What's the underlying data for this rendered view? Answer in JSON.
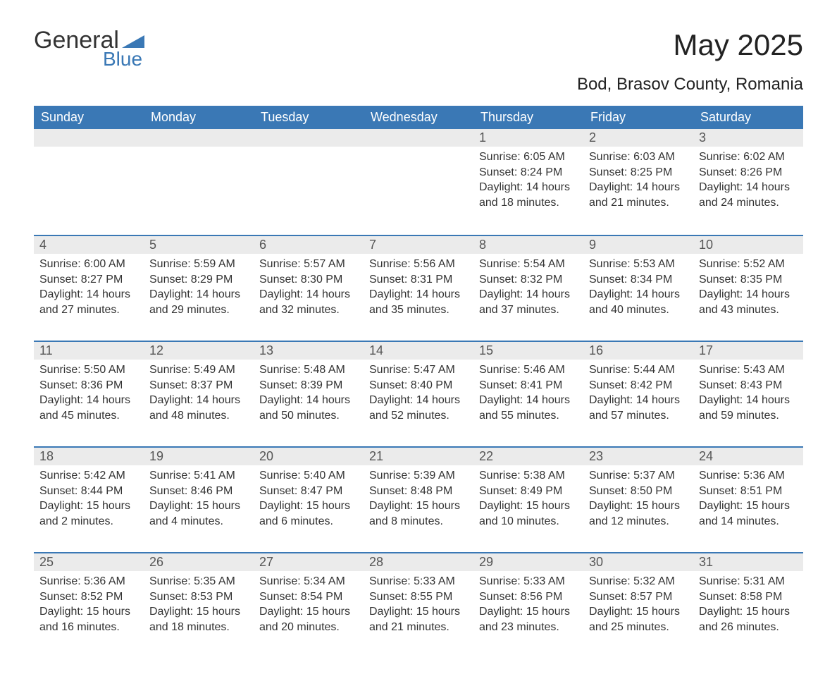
{
  "logo": {
    "word1": "General",
    "word2": "Blue",
    "text_color": "#333333",
    "accent_color": "#3a78b5"
  },
  "title": "May 2025",
  "subtitle": "Bod, Brasov County, Romania",
  "colors": {
    "header_bg": "#3a78b5",
    "header_text": "#ffffff",
    "daynum_bg": "#ebebeb",
    "daynum_border": "#3a78b5",
    "body_text": "#333333",
    "page_bg": "#ffffff"
  },
  "day_headers": [
    "Sunday",
    "Monday",
    "Tuesday",
    "Wednesday",
    "Thursday",
    "Friday",
    "Saturday"
  ],
  "weeks": [
    [
      null,
      null,
      null,
      null,
      {
        "num": "1",
        "sunrise": "Sunrise: 6:05 AM",
        "sunset": "Sunset: 8:24 PM",
        "daylight": "Daylight: 14 hours and 18 minutes."
      },
      {
        "num": "2",
        "sunrise": "Sunrise: 6:03 AM",
        "sunset": "Sunset: 8:25 PM",
        "daylight": "Daylight: 14 hours and 21 minutes."
      },
      {
        "num": "3",
        "sunrise": "Sunrise: 6:02 AM",
        "sunset": "Sunset: 8:26 PM",
        "daylight": "Daylight: 14 hours and 24 minutes."
      }
    ],
    [
      {
        "num": "4",
        "sunrise": "Sunrise: 6:00 AM",
        "sunset": "Sunset: 8:27 PM",
        "daylight": "Daylight: 14 hours and 27 minutes."
      },
      {
        "num": "5",
        "sunrise": "Sunrise: 5:59 AM",
        "sunset": "Sunset: 8:29 PM",
        "daylight": "Daylight: 14 hours and 29 minutes."
      },
      {
        "num": "6",
        "sunrise": "Sunrise: 5:57 AM",
        "sunset": "Sunset: 8:30 PM",
        "daylight": "Daylight: 14 hours and 32 minutes."
      },
      {
        "num": "7",
        "sunrise": "Sunrise: 5:56 AM",
        "sunset": "Sunset: 8:31 PM",
        "daylight": "Daylight: 14 hours and 35 minutes."
      },
      {
        "num": "8",
        "sunrise": "Sunrise: 5:54 AM",
        "sunset": "Sunset: 8:32 PM",
        "daylight": "Daylight: 14 hours and 37 minutes."
      },
      {
        "num": "9",
        "sunrise": "Sunrise: 5:53 AM",
        "sunset": "Sunset: 8:34 PM",
        "daylight": "Daylight: 14 hours and 40 minutes."
      },
      {
        "num": "10",
        "sunrise": "Sunrise: 5:52 AM",
        "sunset": "Sunset: 8:35 PM",
        "daylight": "Daylight: 14 hours and 43 minutes."
      }
    ],
    [
      {
        "num": "11",
        "sunrise": "Sunrise: 5:50 AM",
        "sunset": "Sunset: 8:36 PM",
        "daylight": "Daylight: 14 hours and 45 minutes."
      },
      {
        "num": "12",
        "sunrise": "Sunrise: 5:49 AM",
        "sunset": "Sunset: 8:37 PM",
        "daylight": "Daylight: 14 hours and 48 minutes."
      },
      {
        "num": "13",
        "sunrise": "Sunrise: 5:48 AM",
        "sunset": "Sunset: 8:39 PM",
        "daylight": "Daylight: 14 hours and 50 minutes."
      },
      {
        "num": "14",
        "sunrise": "Sunrise: 5:47 AM",
        "sunset": "Sunset: 8:40 PM",
        "daylight": "Daylight: 14 hours and 52 minutes."
      },
      {
        "num": "15",
        "sunrise": "Sunrise: 5:46 AM",
        "sunset": "Sunset: 8:41 PM",
        "daylight": "Daylight: 14 hours and 55 minutes."
      },
      {
        "num": "16",
        "sunrise": "Sunrise: 5:44 AM",
        "sunset": "Sunset: 8:42 PM",
        "daylight": "Daylight: 14 hours and 57 minutes."
      },
      {
        "num": "17",
        "sunrise": "Sunrise: 5:43 AM",
        "sunset": "Sunset: 8:43 PM",
        "daylight": "Daylight: 14 hours and 59 minutes."
      }
    ],
    [
      {
        "num": "18",
        "sunrise": "Sunrise: 5:42 AM",
        "sunset": "Sunset: 8:44 PM",
        "daylight": "Daylight: 15 hours and 2 minutes."
      },
      {
        "num": "19",
        "sunrise": "Sunrise: 5:41 AM",
        "sunset": "Sunset: 8:46 PM",
        "daylight": "Daylight: 15 hours and 4 minutes."
      },
      {
        "num": "20",
        "sunrise": "Sunrise: 5:40 AM",
        "sunset": "Sunset: 8:47 PM",
        "daylight": "Daylight: 15 hours and 6 minutes."
      },
      {
        "num": "21",
        "sunrise": "Sunrise: 5:39 AM",
        "sunset": "Sunset: 8:48 PM",
        "daylight": "Daylight: 15 hours and 8 minutes."
      },
      {
        "num": "22",
        "sunrise": "Sunrise: 5:38 AM",
        "sunset": "Sunset: 8:49 PM",
        "daylight": "Daylight: 15 hours and 10 minutes."
      },
      {
        "num": "23",
        "sunrise": "Sunrise: 5:37 AM",
        "sunset": "Sunset: 8:50 PM",
        "daylight": "Daylight: 15 hours and 12 minutes."
      },
      {
        "num": "24",
        "sunrise": "Sunrise: 5:36 AM",
        "sunset": "Sunset: 8:51 PM",
        "daylight": "Daylight: 15 hours and 14 minutes."
      }
    ],
    [
      {
        "num": "25",
        "sunrise": "Sunrise: 5:36 AM",
        "sunset": "Sunset: 8:52 PM",
        "daylight": "Daylight: 15 hours and 16 minutes."
      },
      {
        "num": "26",
        "sunrise": "Sunrise: 5:35 AM",
        "sunset": "Sunset: 8:53 PM",
        "daylight": "Daylight: 15 hours and 18 minutes."
      },
      {
        "num": "27",
        "sunrise": "Sunrise: 5:34 AM",
        "sunset": "Sunset: 8:54 PM",
        "daylight": "Daylight: 15 hours and 20 minutes."
      },
      {
        "num": "28",
        "sunrise": "Sunrise: 5:33 AM",
        "sunset": "Sunset: 8:55 PM",
        "daylight": "Daylight: 15 hours and 21 minutes."
      },
      {
        "num": "29",
        "sunrise": "Sunrise: 5:33 AM",
        "sunset": "Sunset: 8:56 PM",
        "daylight": "Daylight: 15 hours and 23 minutes."
      },
      {
        "num": "30",
        "sunrise": "Sunrise: 5:32 AM",
        "sunset": "Sunset: 8:57 PM",
        "daylight": "Daylight: 15 hours and 25 minutes."
      },
      {
        "num": "31",
        "sunrise": "Sunrise: 5:31 AM",
        "sunset": "Sunset: 8:58 PM",
        "daylight": "Daylight: 15 hours and 26 minutes."
      }
    ]
  ]
}
